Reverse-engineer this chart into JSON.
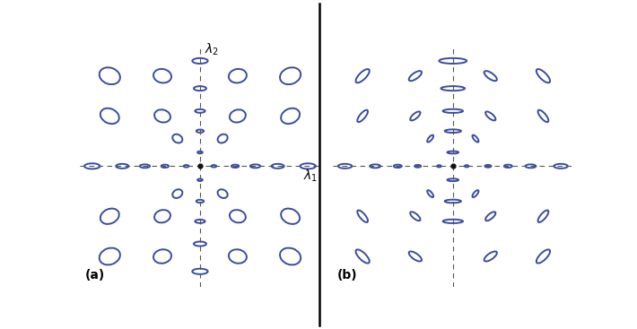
{
  "ec": "#3a4d9f",
  "lw": 1.4,
  "axis_color": "#555555",
  "dot_color": "#111111",
  "bg": "#ffffff",
  "panel_a_label": "(a)",
  "panel_b_label": "(b)",
  "xlim": [
    -4.8,
    4.8
  ],
  "ylim": [
    -4.8,
    4.8
  ],
  "panel_a_ellipses": [
    [
      -3.6,
      3.6,
      0.85,
      0.65,
      -20
    ],
    [
      -1.5,
      3.6,
      0.72,
      0.55,
      -10
    ],
    [
      1.5,
      3.6,
      0.72,
      0.55,
      10
    ],
    [
      3.6,
      3.6,
      0.85,
      0.65,
      20
    ],
    [
      -3.6,
      2.0,
      0.78,
      0.58,
      -25
    ],
    [
      -1.5,
      2.0,
      0.65,
      0.5,
      -15
    ],
    [
      1.5,
      2.0,
      0.65,
      0.5,
      15
    ],
    [
      3.6,
      2.0,
      0.78,
      0.58,
      25
    ],
    [
      -3.6,
      -2.0,
      0.78,
      0.58,
      25
    ],
    [
      -1.5,
      -2.0,
      0.65,
      0.5,
      15
    ],
    [
      1.5,
      -2.0,
      0.65,
      0.5,
      -15
    ],
    [
      3.6,
      -2.0,
      0.78,
      0.58,
      -25
    ],
    [
      -3.6,
      -3.6,
      0.85,
      0.65,
      20
    ],
    [
      -1.5,
      -3.6,
      0.72,
      0.55,
      10
    ],
    [
      1.5,
      -3.6,
      0.72,
      0.55,
      -10
    ],
    [
      3.6,
      -3.6,
      0.85,
      0.65,
      -20
    ],
    [
      -0.9,
      1.1,
      0.42,
      0.32,
      -30
    ],
    [
      0.9,
      1.1,
      0.42,
      0.32,
      30
    ],
    [
      -0.9,
      -1.1,
      0.42,
      0.32,
      30
    ],
    [
      0.9,
      -1.1,
      0.42,
      0.32,
      -30
    ],
    [
      0.0,
      4.2,
      0.22,
      0.62,
      90
    ],
    [
      0.0,
      3.1,
      0.18,
      0.5,
      90
    ],
    [
      0.0,
      2.2,
      0.14,
      0.4,
      90
    ],
    [
      0.0,
      1.4,
      0.12,
      0.3,
      90
    ],
    [
      0.0,
      0.55,
      0.09,
      0.2,
      90
    ],
    [
      0.0,
      -0.55,
      0.09,
      0.2,
      90
    ],
    [
      0.0,
      -1.4,
      0.12,
      0.3,
      90
    ],
    [
      0.0,
      -2.2,
      0.14,
      0.4,
      90
    ],
    [
      0.0,
      -3.1,
      0.18,
      0.5,
      90
    ],
    [
      0.0,
      -4.2,
      0.22,
      0.62,
      90
    ],
    [
      -4.3,
      0.0,
      0.62,
      0.22,
      0
    ],
    [
      -3.1,
      0.0,
      0.5,
      0.18,
      0
    ],
    [
      -2.2,
      0.0,
      0.4,
      0.14,
      0
    ],
    [
      -1.4,
      0.0,
      0.3,
      0.12,
      0
    ],
    [
      -0.55,
      0.0,
      0.2,
      0.09,
      0
    ],
    [
      0.55,
      0.0,
      0.2,
      0.09,
      0
    ],
    [
      1.4,
      0.0,
      0.3,
      0.12,
      0
    ],
    [
      2.2,
      0.0,
      0.4,
      0.14,
      0
    ],
    [
      3.1,
      0.0,
      0.5,
      0.18,
      0
    ],
    [
      4.3,
      0.0,
      0.62,
      0.22,
      0
    ]
  ],
  "panel_b_ellipses": [
    [
      0.0,
      4.2,
      1.1,
      0.22,
      0
    ],
    [
      0.0,
      3.1,
      0.95,
      0.18,
      0
    ],
    [
      0.0,
      2.2,
      0.8,
      0.15,
      0
    ],
    [
      0.0,
      1.4,
      0.65,
      0.13,
      0
    ],
    [
      0.0,
      0.55,
      0.45,
      0.1,
      0
    ],
    [
      0.0,
      -0.55,
      0.45,
      0.1,
      0
    ],
    [
      0.0,
      -1.4,
      0.65,
      0.13,
      0
    ],
    [
      0.0,
      -2.2,
      0.8,
      0.15,
      0
    ],
    [
      -4.3,
      0.0,
      0.55,
      0.18,
      0
    ],
    [
      -3.1,
      0.0,
      0.42,
      0.14,
      0
    ],
    [
      -2.2,
      0.0,
      0.32,
      0.12,
      0
    ],
    [
      -1.4,
      0.0,
      0.25,
      0.1,
      0
    ],
    [
      -0.55,
      0.0,
      0.16,
      0.08,
      0
    ],
    [
      0.55,
      0.0,
      0.16,
      0.08,
      0
    ],
    [
      1.4,
      0.0,
      0.25,
      0.1,
      0
    ],
    [
      2.2,
      0.0,
      0.32,
      0.12,
      0
    ],
    [
      3.1,
      0.0,
      0.42,
      0.14,
      0
    ],
    [
      4.3,
      0.0,
      0.55,
      0.18,
      0
    ],
    [
      -3.6,
      3.6,
      0.72,
      0.28,
      45
    ],
    [
      -1.5,
      3.6,
      0.6,
      0.24,
      35
    ],
    [
      1.5,
      3.6,
      0.6,
      0.24,
      -35
    ],
    [
      3.6,
      3.6,
      0.72,
      0.28,
      -45
    ],
    [
      -3.6,
      2.0,
      0.6,
      0.22,
      50
    ],
    [
      -1.5,
      2.0,
      0.5,
      0.2,
      40
    ],
    [
      1.5,
      2.0,
      0.5,
      0.2,
      -40
    ],
    [
      3.6,
      2.0,
      0.6,
      0.22,
      -50
    ],
    [
      -3.6,
      -2.0,
      0.6,
      0.22,
      -50
    ],
    [
      -1.5,
      -2.0,
      0.5,
      0.2,
      -40
    ],
    [
      1.5,
      -2.0,
      0.5,
      0.2,
      40
    ],
    [
      3.6,
      -2.0,
      0.6,
      0.22,
      50
    ],
    [
      -3.6,
      -3.6,
      0.72,
      0.28,
      -45
    ],
    [
      -1.5,
      -3.6,
      0.6,
      0.24,
      -35
    ],
    [
      1.5,
      -3.6,
      0.6,
      0.24,
      35
    ],
    [
      3.6,
      -3.6,
      0.72,
      0.28,
      45
    ],
    [
      -0.9,
      1.1,
      0.35,
      0.14,
      50
    ],
    [
      0.9,
      1.1,
      0.35,
      0.14,
      -50
    ],
    [
      -0.9,
      -1.1,
      0.35,
      0.14,
      -50
    ],
    [
      0.9,
      -1.1,
      0.35,
      0.14,
      50
    ]
  ]
}
